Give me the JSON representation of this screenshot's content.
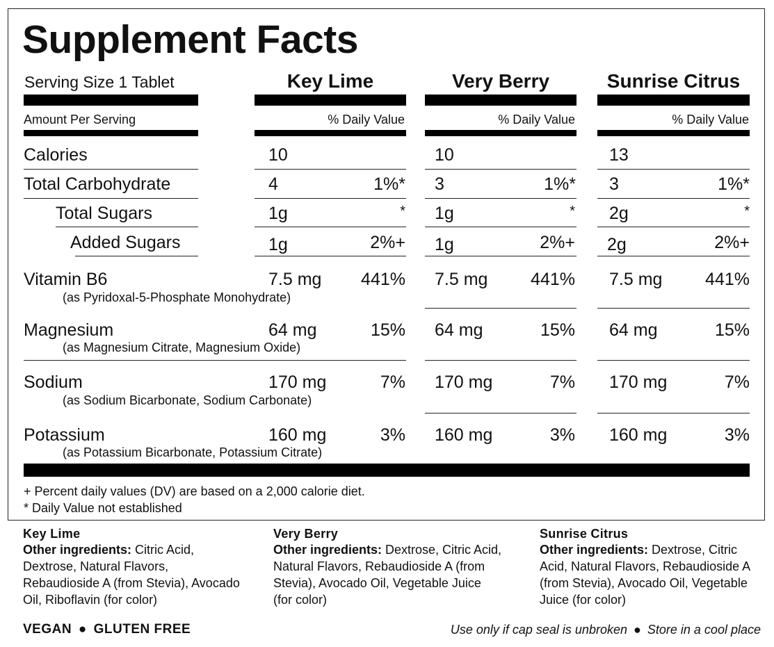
{
  "title": "Supplement Facts",
  "serving_size": "Serving Size 1 Tablet",
  "amount_per_serving": "Amount Per Serving",
  "daily_value_header": "% Daily Value",
  "flavors": [
    "Key Lime",
    "Very Berry",
    "Sunrise Citrus"
  ],
  "nutrients": [
    {
      "name": "Calories",
      "sub": "",
      "values": [
        [
          "10",
          ""
        ],
        [
          "10",
          ""
        ],
        [
          "13",
          ""
        ]
      ]
    },
    {
      "name": "Total Carbohydrate",
      "sub": "",
      "values": [
        [
          "4",
          "1%*"
        ],
        [
          "3",
          "1%*"
        ],
        [
          "3",
          "1%*"
        ]
      ]
    },
    {
      "name": "Total Sugars",
      "sub": "",
      "values": [
        [
          "1g",
          "*"
        ],
        [
          "1g",
          "*"
        ],
        [
          "2g",
          "*"
        ]
      ]
    },
    {
      "name": "Added Sugars",
      "sub": "",
      "values": [
        [
          "1g",
          "2%+"
        ],
        [
          "1g",
          "2%+"
        ],
        [
          "2g",
          "2%+"
        ]
      ]
    },
    {
      "name": "Vitamin B6",
      "sub": "(as Pyridoxal-5-Phosphate Monohydrate)",
      "values": [
        [
          "7.5 mg",
          "441%"
        ],
        [
          "7.5 mg",
          "441%"
        ],
        [
          "7.5 mg",
          "441%"
        ]
      ]
    },
    {
      "name": "Magnesium",
      "sub": "(as Magnesium Citrate, Magnesium Oxide)",
      "values": [
        [
          "64 mg",
          "15%"
        ],
        [
          "64 mg",
          "15%"
        ],
        [
          "64 mg",
          "15%"
        ]
      ]
    },
    {
      "name": "Sodium",
      "sub": "(as Sodium Bicarbonate, Sodium Carbonate)",
      "values": [
        [
          "170 mg",
          "7%"
        ],
        [
          "170 mg",
          "7%"
        ],
        [
          "170 mg",
          "7%"
        ]
      ]
    },
    {
      "name": "Potassium",
      "sub": "(as Potassium Bicarbonate, Potassium Citrate)",
      "values": [
        [
          "160 mg",
          "3%"
        ],
        [
          "160 mg",
          "3%"
        ],
        [
          "160 mg",
          "3%"
        ]
      ]
    }
  ],
  "footnotes": {
    "dv": "+ Percent daily values (DV) are based on a 2,000 calorie diet.",
    "not_established": "* Daily Value not established"
  },
  "ingredients": [
    {
      "flavor": "Key Lime",
      "label": "Other ingredients:",
      "text": " Citric Acid, Dextrose, Natural Flavors, Rebaudioside A (from Stevia), Avocado Oil, Riboflavin (for color)"
    },
    {
      "flavor": "Very Berry",
      "label": "Other ingredients:",
      "text": " Dextrose, Citric Acid, Natural Flavors, Rebaudioside A (from Stevia), Avocado Oil, Vegetable Juice (for color)"
    },
    {
      "flavor": "Sunrise Citrus",
      "label": "Other ingredients:",
      "text": " Dextrose, Citric Acid, Natural Flavors, Rebaudioside A (from Stevia), Avocado Oil, Vegetable Juice (for color)"
    }
  ],
  "badges": {
    "vegan": "VEGAN",
    "gluten_free": "GLUTEN FREE",
    "separator": "●"
  },
  "storage": {
    "cap_seal": "Use only if cap seal is unbroken",
    "separator": "●",
    "cool_place": "Store in a cool place"
  }
}
